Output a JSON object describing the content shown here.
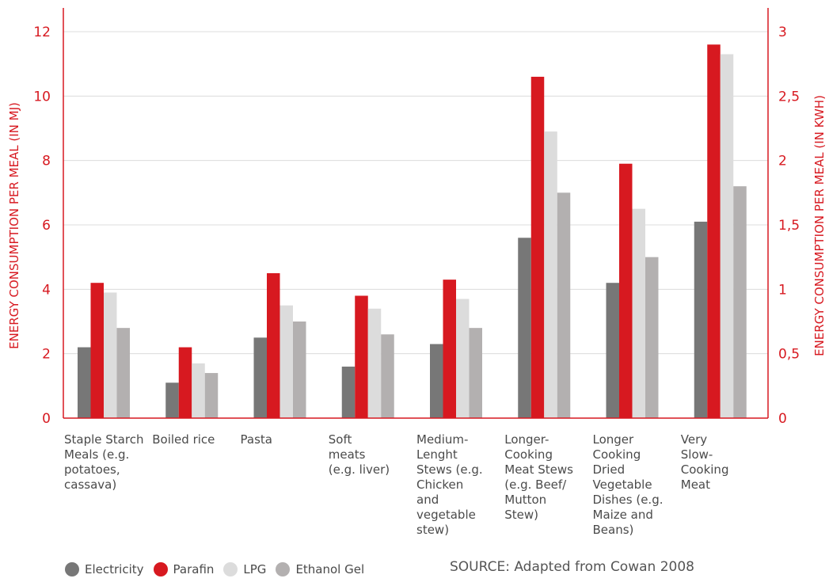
{
  "chart_data": {
    "type": "bar",
    "title": "",
    "ylabel": "ENERGY CONSUMPTION PER MEAL (IN MJ)",
    "y2label": "ENERGY CONSUMPTION PER MEAL (IN KWH)",
    "ylim": [
      0,
      12
    ],
    "y2lim": [
      0,
      3
    ],
    "yticks": [
      "0",
      "2",
      "4",
      "6",
      "8",
      "10",
      "12"
    ],
    "y2ticks": [
      "0",
      "0,5",
      "1",
      "1,5",
      "2",
      "2,5",
      "3"
    ],
    "grid": true,
    "legend_position": "bottom-left",
    "categories": [
      [
        "Staple Starch",
        "Meals (e.g.",
        "potatoes,",
        "cassava)"
      ],
      [
        "Boiled rice"
      ],
      [
        "Pasta"
      ],
      [
        "Soft",
        "meats",
        "(e.g. liver)"
      ],
      [
        "Medium-",
        "Lenght",
        "Stews (e.g.",
        "Chicken",
        "and",
        "vegetable",
        "stew)"
      ],
      [
        "Longer-",
        "Cooking",
        "Meat Stews",
        "(e.g. Beef/",
        "Mutton",
        "Stew)"
      ],
      [
        "Longer",
        "Cooking",
        "Dried",
        "Vegetable",
        "Dishes (e.g.",
        "Maize and",
        "Beans)"
      ],
      [
        "Very",
        "Slow-",
        "Cooking",
        "Meat"
      ]
    ],
    "series": [
      {
        "name": "Electricity",
        "color": "#777777",
        "values": [
          2.2,
          1.1,
          2.5,
          1.6,
          2.3,
          5.6,
          4.2,
          6.1
        ]
      },
      {
        "name": "Parafin",
        "color": "#d71920",
        "values": [
          4.2,
          2.2,
          4.5,
          3.8,
          4.3,
          10.6,
          7.9,
          11.6
        ]
      },
      {
        "name": "LPG",
        "color": "#dcdcdc",
        "values": [
          3.9,
          1.7,
          3.5,
          3.4,
          3.7,
          8.9,
          6.5,
          11.3
        ]
      },
      {
        "name": "Ethanol Gel",
        "color": "#b3b0b0",
        "values": [
          2.8,
          1.4,
          3.0,
          2.6,
          2.8,
          7.0,
          5.0,
          7.2
        ]
      }
    ]
  },
  "source": "SOURCE: Adapted from Cowan 2008"
}
